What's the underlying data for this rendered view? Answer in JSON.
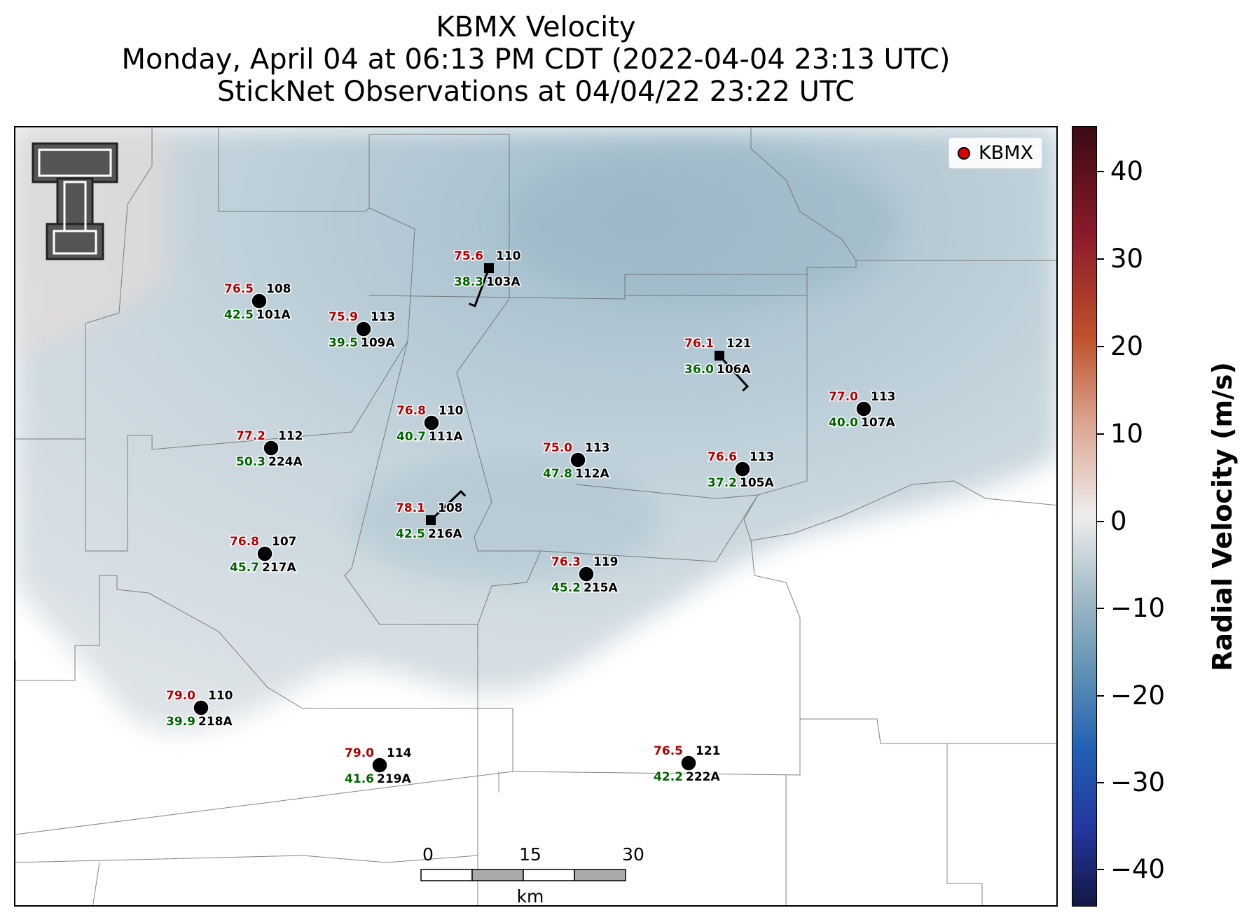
{
  "title": {
    "line1": "KBMX Velocity",
    "line2": "Monday, April 04 at 06:13 PM CDT (2022-04-04 23:13 UTC)",
    "line3": "StickNet Observations at 04/04/22 23:22 UTC"
  },
  "legend": {
    "label": "KBMX",
    "marker_color": "#e00000"
  },
  "colorbar": {
    "label": "Radial Velocity (m/s)",
    "ticks": [
      "40",
      "30",
      "20",
      "10",
      "0",
      "−10",
      "−20",
      "−30",
      "−40"
    ],
    "range": [
      -45,
      45
    ]
  },
  "scalebar": {
    "labels": [
      "0",
      "15",
      "30"
    ],
    "unit": "km"
  },
  "colors": {
    "temp": "#b00000",
    "dewpoint": "#006400",
    "station": "#000000"
  },
  "stations": [
    {
      "id": "101A",
      "temp": "76.5",
      "dew": "42.5",
      "pressure": "108",
      "marker": "circle"
    },
    {
      "id": "109A",
      "temp": "75.9",
      "dew": "39.5",
      "pressure": "113",
      "marker": "circle"
    },
    {
      "id": "103A",
      "temp": "75.6",
      "dew": "38.3",
      "pressure": "110",
      "marker": "square"
    },
    {
      "id": "106A",
      "temp": "76.1",
      "dew": "36.0",
      "pressure": "121",
      "marker": "square"
    },
    {
      "id": "107A",
      "temp": "77.0",
      "dew": "40.0",
      "pressure": "113",
      "marker": "circle"
    },
    {
      "id": "111A",
      "temp": "76.8",
      "dew": "40.7",
      "pressure": "110",
      "marker": "circle"
    },
    {
      "id": "224A",
      "temp": "77.2",
      "dew": "50.3",
      "pressure": "112",
      "marker": "circle"
    },
    {
      "id": "112A",
      "temp": "75.0",
      "dew": "47.8",
      "pressure": "113",
      "marker": "circle"
    },
    {
      "id": "105A",
      "temp": "76.6",
      "dew": "37.2",
      "pressure": "113",
      "marker": "circle"
    },
    {
      "id": "216A",
      "temp": "78.1",
      "dew": "42.5",
      "pressure": "108",
      "marker": "square"
    },
    {
      "id": "217A",
      "temp": "76.8",
      "dew": "45.7",
      "pressure": "107",
      "marker": "circle"
    },
    {
      "id": "215A",
      "temp": "76.3",
      "dew": "45.2",
      "pressure": "119",
      "marker": "circle"
    },
    {
      "id": "218A",
      "temp": "79.0",
      "dew": "39.9",
      "pressure": "110",
      "marker": "circle"
    },
    {
      "id": "219A",
      "temp": "79.0",
      "dew": "41.6",
      "pressure": "114",
      "marker": "circle"
    },
    {
      "id": "222A",
      "temp": "76.5",
      "dew": "42.2",
      "pressure": "121",
      "marker": "circle"
    }
  ]
}
